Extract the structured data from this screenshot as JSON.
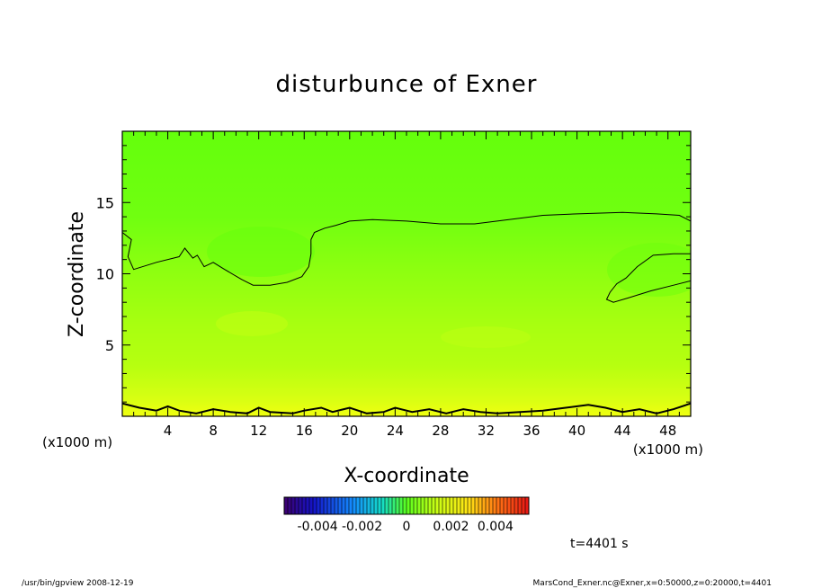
{
  "chart_data": {
    "type": "heatmap",
    "title": "disturbunce of Exner",
    "xlabel": "X-coordinate",
    "ylabel": "Z-coordinate",
    "x_unit_left": "(x1000 m)",
    "x_unit_right": "(x1000 m)",
    "xlim": [
      0,
      50
    ],
    "ylim": [
      0,
      20
    ],
    "x_ticks": [
      4,
      8,
      12,
      16,
      20,
      24,
      28,
      32,
      36,
      40,
      44,
      48
    ],
    "y_ticks": [
      5,
      10,
      15
    ],
    "colorbar": {
      "range": [
        -0.0055,
        0.0055
      ],
      "tick_labels": [
        "-0.004",
        "-0.002",
        "0",
        "0.002",
        "0.004"
      ],
      "tick_values": [
        -0.004,
        -0.002,
        0,
        0.002,
        0.004
      ]
    },
    "contour_upper": [
      [
        0,
        12.9
      ],
      [
        0.8,
        12.4
      ],
      [
        0.5,
        11.2
      ],
      [
        1,
        10.3
      ],
      [
        3,
        10.8
      ],
      [
        5,
        11.2
      ],
      [
        5.5,
        11.8
      ],
      [
        6.2,
        11.1
      ],
      [
        6.6,
        11.3
      ],
      [
        7.2,
        10.5
      ],
      [
        8,
        10.8
      ],
      [
        9,
        10.3
      ],
      [
        10.5,
        9.6
      ],
      [
        11.5,
        9.2
      ],
      [
        13,
        9.2
      ],
      [
        14.5,
        9.4
      ],
      [
        15.8,
        9.8
      ],
      [
        16.4,
        10.5
      ],
      [
        16.6,
        11.4
      ],
      [
        16.6,
        12.4
      ],
      [
        16.9,
        12.9
      ],
      [
        17.8,
        13.2
      ],
      [
        18.8,
        13.4
      ],
      [
        20,
        13.7
      ],
      [
        22,
        13.8
      ],
      [
        25,
        13.7
      ],
      [
        28,
        13.5
      ],
      [
        31,
        13.5
      ],
      [
        34,
        13.8
      ],
      [
        37,
        14.1
      ],
      [
        40,
        14.2
      ],
      [
        44,
        14.3
      ],
      [
        47,
        14.2
      ],
      [
        49,
        14.1
      ],
      [
        50,
        13.7
      ]
    ],
    "contour_blob": [
      [
        50,
        11.4
      ],
      [
        48.5,
        11.4
      ],
      [
        46.7,
        11.3
      ],
      [
        45.3,
        10.5
      ],
      [
        44.3,
        9.7
      ],
      [
        43.5,
        9.3
      ],
      [
        42.9,
        8.7
      ],
      [
        42.6,
        8.2
      ],
      [
        43.2,
        8.0
      ],
      [
        44.5,
        8.3
      ],
      [
        46.5,
        8.8
      ],
      [
        48.5,
        9.2
      ],
      [
        50,
        9.5
      ]
    ],
    "contour_bottom": [
      [
        0,
        0.9
      ],
      [
        1.5,
        0.6
      ],
      [
        3,
        0.4
      ],
      [
        4,
        0.7
      ],
      [
        5,
        0.4
      ],
      [
        6.5,
        0.2
      ],
      [
        8,
        0.5
      ],
      [
        9.5,
        0.3
      ],
      [
        11,
        0.2
      ],
      [
        12,
        0.6
      ],
      [
        13,
        0.3
      ],
      [
        15,
        0.2
      ],
      [
        16,
        0.4
      ],
      [
        17.5,
        0.6
      ],
      [
        18.5,
        0.3
      ],
      [
        20,
        0.6
      ],
      [
        21.5,
        0.2
      ],
      [
        23,
        0.3
      ],
      [
        24,
        0.6
      ],
      [
        25.5,
        0.3
      ],
      [
        27,
        0.5
      ],
      [
        28.5,
        0.2
      ],
      [
        30,
        0.5
      ],
      [
        31.5,
        0.3
      ],
      [
        33,
        0.2
      ],
      [
        35,
        0.3
      ],
      [
        37,
        0.4
      ],
      [
        39,
        0.6
      ],
      [
        41,
        0.8
      ],
      [
        42.5,
        0.6
      ],
      [
        44,
        0.3
      ],
      [
        45.5,
        0.5
      ],
      [
        47,
        0.2
      ],
      [
        48.5,
        0.5
      ],
      [
        50,
        0.9
      ]
    ],
    "annotation": "t=4401 s"
  },
  "footer": {
    "left": "/usr/bin/gpview   2008-12-19",
    "right": "MarsCond_Exner.nc@Exner,x=0:50000,z=0:20000,t=4401"
  }
}
